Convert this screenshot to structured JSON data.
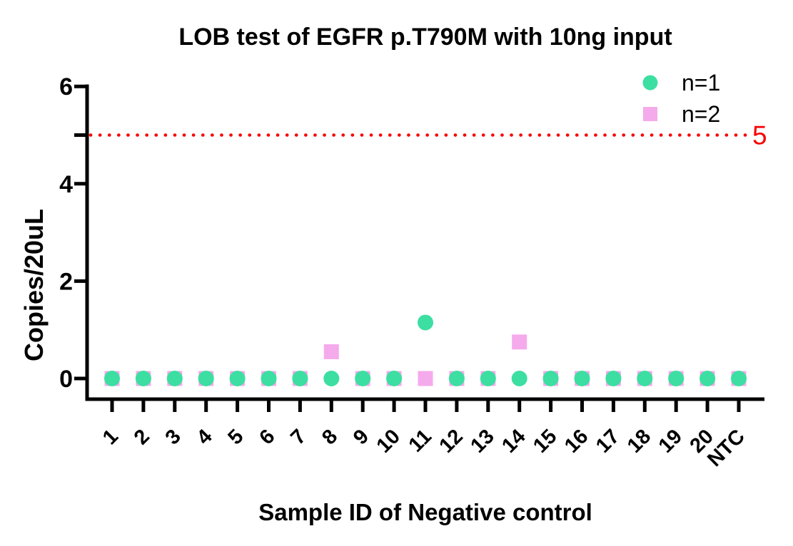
{
  "figure": {
    "title": "LOB test of EGFR p.T790M with 10ng input",
    "x_axis_label": "Sample ID of Negative control",
    "y_axis_label": "Copies/20uL"
  },
  "chart_data": {
    "type": "scatter",
    "title": "LOB test of EGFR p.T790M with 10ng input",
    "xlabel": "Sample ID of Negative control",
    "ylabel": "Copies/20uL",
    "categories": [
      "1",
      "2",
      "3",
      "4",
      "5",
      "6",
      "7",
      "8",
      "9",
      "10",
      "11",
      "12",
      "13",
      "14",
      "15",
      "16",
      "17",
      "18",
      "19",
      "20",
      "NTC"
    ],
    "series": [
      {
        "name": "n=1",
        "marker": "circle",
        "color": "#3CDFA1",
        "values": [
          0,
          0,
          0,
          0,
          0,
          0,
          0,
          0,
          0,
          0,
          1.15,
          0,
          0,
          0,
          0,
          0,
          0,
          0,
          0,
          0,
          0
        ]
      },
      {
        "name": "n=2",
        "marker": "square",
        "color": "#F5AAEC",
        "values": [
          0,
          0,
          0,
          0,
          0,
          0,
          0,
          0.55,
          0,
          0,
          0,
          0,
          0,
          0.75,
          0,
          0,
          0,
          0,
          0,
          0,
          0
        ]
      }
    ],
    "threshold_line": {
      "value": 5,
      "label": "5",
      "color": "#F70000",
      "style": "dotted"
    },
    "y_ticks": [
      0,
      2,
      4,
      6
    ],
    "ylim": [
      0,
      6
    ],
    "legend_position": "top-right",
    "grid": false,
    "axis_color": "#000000"
  }
}
